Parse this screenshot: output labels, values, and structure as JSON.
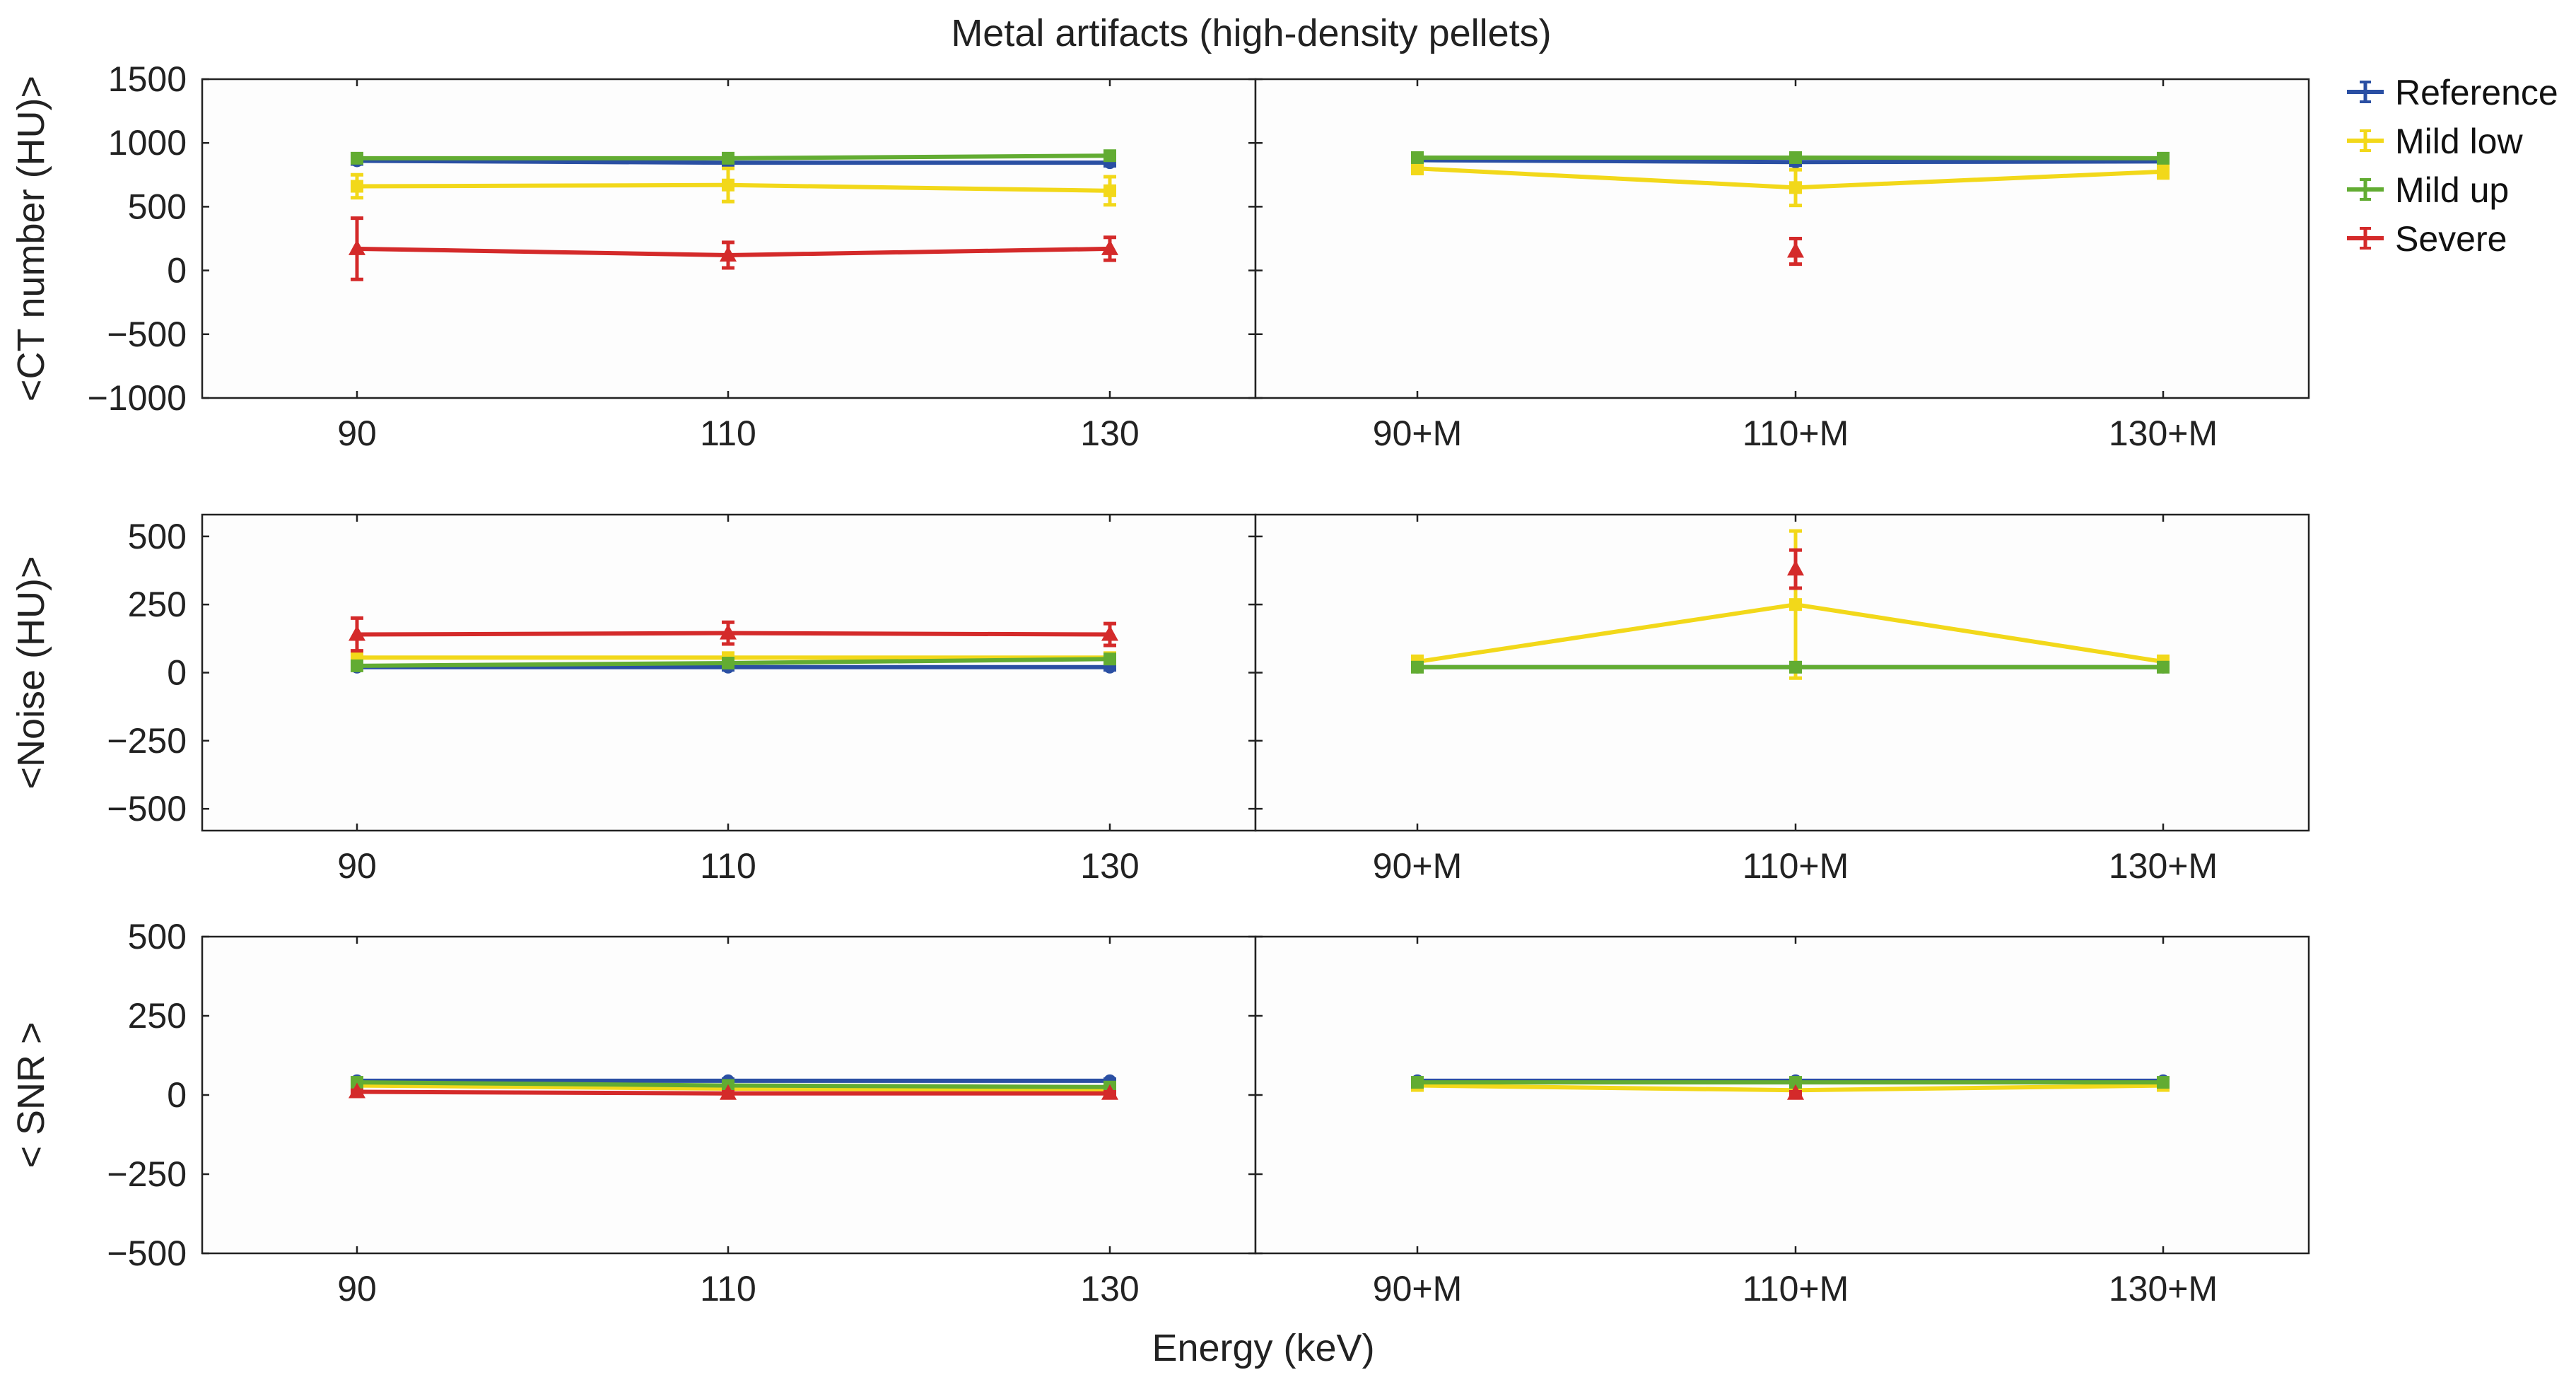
{
  "chart_data": {
    "type": "line",
    "title": "Metal artifacts (high-density pellets)",
    "xlabel": "Energy (keV)",
    "x_groups": [
      {
        "name": "left",
        "categories": [
          "90",
          "110",
          "130"
        ]
      },
      {
        "name": "right",
        "categories": [
          "90+M",
          "110+M",
          "130+M"
        ]
      }
    ],
    "legend": {
      "placement": "right-top",
      "entries": [
        "Reference",
        "Mild low",
        "Mild up",
        "Severe"
      ]
    },
    "colors": {
      "Reference": "#2a4fa3",
      "Mild low": "#f2d81a",
      "Mild up": "#62ac32",
      "Severe": "#d42a2a"
    },
    "panels": [
      {
        "name": "ct-number",
        "ylabel": "<CT number (HU)>",
        "ylim": [
          -1000,
          1500
        ],
        "yticks": [
          1500,
          1000,
          500,
          0,
          -500,
          -1000
        ],
        "ytick_labels": [
          "1500",
          "1000",
          "500",
          "0",
          "−500",
          "−1000"
        ],
        "series": [
          {
            "name": "Reference",
            "left": [
              860,
              845,
              845
            ],
            "right": [
              865,
              850,
              855
            ],
            "err_left": [
              25,
              25,
              25
            ],
            "err_right": [
              25,
              25,
              25
            ]
          },
          {
            "name": "Mild low",
            "left": [
              660,
              670,
              625
            ],
            "right": [
              800,
              650,
              775
            ],
            "err_left": [
              90,
              130,
              110
            ],
            "err_right": [
              40,
              140,
              50
            ]
          },
          {
            "name": "Mild up",
            "left": [
              880,
              880,
              900
            ],
            "right": [
              885,
              885,
              880
            ],
            "err_left": [
              30,
              30,
              30
            ],
            "err_right": [
              30,
              30,
              30
            ]
          },
          {
            "name": "Severe",
            "left": [
              170,
              120,
              170
            ],
            "right": [
              null,
              150,
              null
            ],
            "err_left": [
              240,
              100,
              90
            ],
            "err_right": [
              null,
              100,
              null
            ]
          }
        ]
      },
      {
        "name": "noise",
        "ylabel": "<Noise (HU)>",
        "ylim": [
          -580,
          580
        ],
        "yticks": [
          500,
          250,
          0,
          -250,
          -500
        ],
        "ytick_labels": [
          "500",
          "250",
          "0",
          "−250",
          "−500"
        ],
        "series": [
          {
            "name": "Reference",
            "left": [
              20,
              20,
              20
            ],
            "right": [
              20,
              20,
              20
            ],
            "err_left": [
              10,
              10,
              10
            ],
            "err_right": [
              10,
              10,
              10
            ]
          },
          {
            "name": "Mild low",
            "left": [
              55,
              55,
              55
            ],
            "right": [
              40,
              250,
              40
            ],
            "err_left": [
              10,
              10,
              10
            ],
            "err_right": [
              20,
              270,
              20
            ]
          },
          {
            "name": "Mild up",
            "left": [
              25,
              35,
              50
            ],
            "right": [
              20,
              20,
              20
            ],
            "err_left": [
              10,
              10,
              10
            ],
            "err_right": [
              10,
              10,
              10
            ]
          },
          {
            "name": "Severe",
            "left": [
              140,
              145,
              140
            ],
            "right": [
              null,
              380,
              null
            ],
            "err_left": [
              60,
              40,
              40
            ],
            "err_right": [
              null,
              70,
              null
            ]
          }
        ]
      },
      {
        "name": "snr",
        "ylabel": "< SNR >",
        "ylim": [
          -500,
          500
        ],
        "yticks": [
          500,
          250,
          0,
          -250,
          -500
        ],
        "ytick_labels": [
          "500",
          "250",
          "0",
          "−250",
          "−500"
        ],
        "series": [
          {
            "name": "Reference",
            "left": [
              45,
              45,
              45
            ],
            "right": [
              45,
              45,
              45
            ],
            "err_left": [
              5,
              5,
              5
            ],
            "err_right": [
              5,
              5,
              5
            ]
          },
          {
            "name": "Mild low",
            "left": [
              30,
              20,
              15
            ],
            "right": [
              30,
              15,
              30
            ],
            "err_left": [
              5,
              5,
              5
            ],
            "err_right": [
              5,
              5,
              5
            ]
          },
          {
            "name": "Mild up",
            "left": [
              40,
              30,
              25
            ],
            "right": [
              40,
              40,
              40
            ],
            "err_left": [
              5,
              5,
              5
            ],
            "err_right": [
              5,
              5,
              5
            ]
          },
          {
            "name": "Severe",
            "left": [
              10,
              5,
              5
            ],
            "right": [
              null,
              5,
              null
            ],
            "err_left": [
              5,
              5,
              5
            ],
            "err_right": [
              null,
              5,
              null
            ]
          }
        ]
      }
    ]
  }
}
